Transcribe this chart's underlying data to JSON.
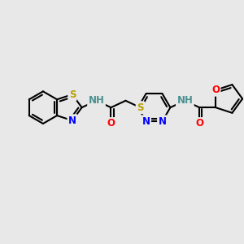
{
  "bg_color": "#e8e8e8",
  "colors": {
    "C": "#000000",
    "N": "#0000ff",
    "O": "#ff0000",
    "S": "#b8a000",
    "H": "#4a9090",
    "bond": "#000000"
  },
  "figsize": [
    3.0,
    3.0
  ],
  "dpi": 100,
  "bl": 20,
  "lw": 1.5,
  "fs": 8.5
}
